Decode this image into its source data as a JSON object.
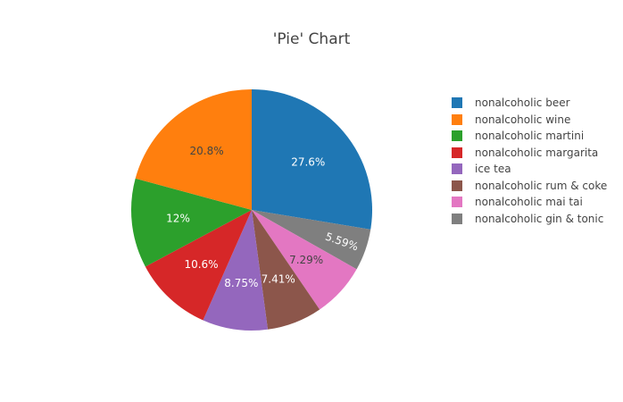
{
  "chart_data": {
    "type": "pie",
    "title": "'Pie' Chart",
    "legend_position": "right",
    "direction": "clockwise",
    "start": "top",
    "slices": [
      {
        "label": "nonalcoholic beer",
        "value": 27.6,
        "text": "27.6%",
        "color": "#1f77b4",
        "text_color": "#ffffff"
      },
      {
        "label": "nonalcoholic gin & tonic",
        "value": 5.59,
        "text": "5.59%",
        "color": "#7f7f7f",
        "text_color": "#ffffff"
      },
      {
        "label": "nonalcoholic mai tai",
        "value": 7.29,
        "text": "7.29%",
        "color": "#e377c2",
        "text_color": "#444444"
      },
      {
        "label": "nonalcoholic rum & coke",
        "value": 7.41,
        "text": "7.41%",
        "color": "#8c564b",
        "text_color": "#ffffff"
      },
      {
        "label": "ice tea",
        "value": 8.75,
        "text": "8.75%",
        "color": "#9467bd",
        "text_color": "#ffffff"
      },
      {
        "label": "nonalcoholic margarita",
        "value": 10.6,
        "text": "10.6%",
        "color": "#d62728",
        "text_color": "#ffffff"
      },
      {
        "label": "nonalcoholic martini",
        "value": 12,
        "text": "12%",
        "color": "#2ca02c",
        "text_color": "#ffffff"
      },
      {
        "label": "nonalcoholic wine",
        "value": 20.8,
        "text": "20.8%",
        "color": "#ff7f0e",
        "text_color": "#444444"
      }
    ],
    "legend": [
      {
        "label": "nonalcoholic beer",
        "color": "#1f77b4"
      },
      {
        "label": "nonalcoholic wine",
        "color": "#ff7f0e"
      },
      {
        "label": "nonalcoholic martini",
        "color": "#2ca02c"
      },
      {
        "label": "nonalcoholic margarita",
        "color": "#d62728"
      },
      {
        "label": "ice tea",
        "color": "#9467bd"
      },
      {
        "label": "nonalcoholic rum & coke",
        "color": "#8c564b"
      },
      {
        "label": "nonalcoholic mai tai",
        "color": "#e377c2"
      },
      {
        "label": "nonalcoholic gin & tonic",
        "color": "#7f7f7f"
      }
    ]
  }
}
